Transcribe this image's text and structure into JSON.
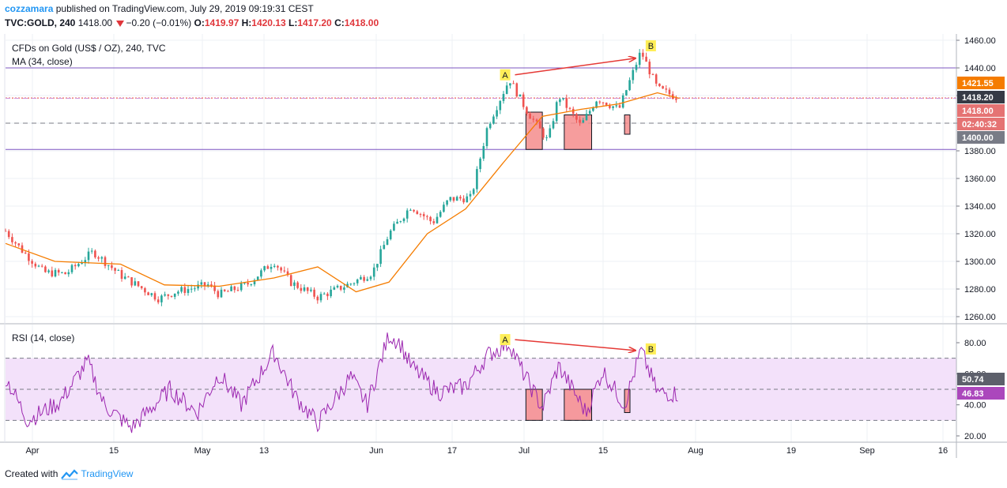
{
  "header": {
    "author": "cozzamara",
    "published": "published on TradingView.com, July 29, 2019 09:19:31 CEST",
    "symbol": "TVC:GOLD, 240",
    "last": "1418.00",
    "change": "−0.20 (−0.01%)",
    "o_label": "O:",
    "o": "1419.97",
    "h_label": "H:",
    "h": "1420.13",
    "l_label": "L:",
    "l": "1417.20",
    "c_label": "C:",
    "c": "1418.00"
  },
  "footer": {
    "created_with": "Created with",
    "brand": "TradingView"
  },
  "colors": {
    "candle_up": "#26a69a",
    "candle_down": "#ef5350",
    "ma": "#f57c00",
    "rsi": "#9c27b0",
    "rsi_band": "#f3e1fa",
    "resistance": "#7e57c2",
    "arrow": "#e53935",
    "box": "#f48c8c",
    "marker": "#ffee58",
    "badge_ma": "#f57c00",
    "badge_price": "#e57373",
    "badge_dark": "#363a45",
    "badge_gray": "#787b86",
    "badge_rsi_dark": "#5d606b",
    "badge_rsi": "#ab47bc"
  },
  "chart_data": [
    {
      "type": "candlestick",
      "title": "CFDs on Gold (US$ / OZ), 240, TVC",
      "indicator": "MA (34, close)",
      "y_ticks": [
        "1460.00",
        "1440.00",
        "1420.00",
        "1400.00",
        "1380.00",
        "1360.00",
        "1340.00",
        "1320.00",
        "1300.00",
        "1280.00",
        "1260.00"
      ],
      "x_ticks": [
        "Apr",
        "15",
        "May",
        "13",
        "Jun",
        "17",
        "Jul",
        "15",
        "Aug",
        "19",
        "Sep",
        "16"
      ],
      "ylim": [
        1254,
        1464
      ],
      "price_path": [
        {
          "x": "2019-03-25",
          "y": 1322
        },
        {
          "x": "2019-03-28",
          "y": 1308
        },
        {
          "x": "2019-04-01",
          "y": 1292
        },
        {
          "x": "2019-04-05",
          "y": 1291
        },
        {
          "x": "2019-04-10",
          "y": 1307
        },
        {
          "x": "2019-04-15",
          "y": 1290
        },
        {
          "x": "2019-04-22",
          "y": 1273
        },
        {
          "x": "2019-04-25",
          "y": 1278
        },
        {
          "x": "2019-05-01",
          "y": 1283
        },
        {
          "x": "2019-05-03",
          "y": 1276
        },
        {
          "x": "2019-05-08",
          "y": 1283
        },
        {
          "x": "2019-05-13",
          "y": 1300
        },
        {
          "x": "2019-05-16",
          "y": 1285
        },
        {
          "x": "2019-05-21",
          "y": 1274
        },
        {
          "x": "2019-05-27",
          "y": 1284
        },
        {
          "x": "2019-05-31",
          "y": 1292
        },
        {
          "x": "2019-06-03",
          "y": 1320
        },
        {
          "x": "2019-06-07",
          "y": 1340
        },
        {
          "x": "2019-06-11",
          "y": 1328
        },
        {
          "x": "2019-06-14",
          "y": 1345
        },
        {
          "x": "2019-06-18",
          "y": 1346
        },
        {
          "x": "2019-06-21",
          "y": 1398
        },
        {
          "x": "2019-06-25",
          "y": 1432
        },
        {
          "x": "2019-06-28",
          "y": 1410
        },
        {
          "x": "2019-07-02",
          "y": 1387
        },
        {
          "x": "2019-07-04",
          "y": 1420
        },
        {
          "x": "2019-07-08",
          "y": 1398
        },
        {
          "x": "2019-07-11",
          "y": 1418
        },
        {
          "x": "2019-07-15",
          "y": 1410
        },
        {
          "x": "2019-07-19",
          "y": 1452
        },
        {
          "x": "2019-07-22",
          "y": 1425
        },
        {
          "x": "2019-07-26",
          "y": 1418
        }
      ],
      "ma_path": [
        {
          "x": "2019-03-25",
          "y": 1313
        },
        {
          "x": "2019-04-03",
          "y": 1300
        },
        {
          "x": "2019-04-15",
          "y": 1298
        },
        {
          "x": "2019-04-23",
          "y": 1283
        },
        {
          "x": "2019-05-03",
          "y": 1282
        },
        {
          "x": "2019-05-13",
          "y": 1288
        },
        {
          "x": "2019-05-21",
          "y": 1296
        },
        {
          "x": "2019-05-28",
          "y": 1278
        },
        {
          "x": "2019-06-03",
          "y": 1285
        },
        {
          "x": "2019-06-10",
          "y": 1320
        },
        {
          "x": "2019-06-17",
          "y": 1338
        },
        {
          "x": "2019-06-24",
          "y": 1372
        },
        {
          "x": "2019-07-01",
          "y": 1405
        },
        {
          "x": "2019-07-08",
          "y": 1410
        },
        {
          "x": "2019-07-15",
          "y": 1414
        },
        {
          "x": "2019-07-22",
          "y": 1422
        },
        {
          "x": "2019-07-26",
          "y": 1418
        }
      ],
      "horizontal_lines": [
        {
          "y": 1440,
          "style": "solid",
          "color": "#7e57c2"
        },
        {
          "y": 1381,
          "style": "solid",
          "color": "#7e57c2"
        },
        {
          "y": 1418.2,
          "style": "dotted",
          "color": "#e53935"
        },
        {
          "y": 1418,
          "style": "dashed",
          "color": "#ce93d8"
        },
        {
          "y": 1400,
          "style": "dashed",
          "color": "#787b86"
        }
      ],
      "price_labels": [
        {
          "value": "1421.55",
          "color": "badge_ma"
        },
        {
          "value": "1418.20",
          "color": "badge_dark"
        },
        {
          "value": "1418.00",
          "color": "badge_price"
        },
        {
          "value": "02:40:32",
          "color": "badge_price"
        },
        {
          "value": "1400.00",
          "color": "badge_gray"
        }
      ],
      "annotations": [
        {
          "label": "A",
          "x": "2019-06-25",
          "y": 1435
        },
        {
          "label": "B",
          "x": "2019-07-19",
          "y": 1456
        }
      ],
      "divergence_arrow": {
        "from": {
          "x": "2019-06-26",
          "y": 1435
        },
        "to": {
          "x": "2019-07-18",
          "y": 1447
        }
      },
      "boxes": [
        {
          "x0": "2019-06-28",
          "x1": "2019-07-01",
          "y0": 1381,
          "y1": 1408
        },
        {
          "x0": "2019-07-05",
          "x1": "2019-07-10",
          "y0": 1381,
          "y1": 1406
        },
        {
          "x0": "2019-07-16",
          "x1": "2019-07-17",
          "y0": 1392,
          "y1": 1406
        }
      ]
    },
    {
      "type": "line",
      "title": "RSI (14, close)",
      "y_ticks": [
        "80.00",
        "60.00",
        "40.00",
        "20.00"
      ],
      "ylim": [
        19,
        89
      ],
      "band": [
        30,
        70
      ],
      "midline": 50,
      "rsi_path": [
        {
          "x": "2019-03-25",
          "y": 58
        },
        {
          "x": "2019-03-29",
          "y": 30
        },
        {
          "x": "2019-04-04",
          "y": 42
        },
        {
          "x": "2019-04-09",
          "y": 68
        },
        {
          "x": "2019-04-12",
          "y": 40
        },
        {
          "x": "2019-04-17",
          "y": 25
        },
        {
          "x": "2019-04-24",
          "y": 50
        },
        {
          "x": "2019-04-29",
          "y": 35
        },
        {
          "x": "2019-05-03",
          "y": 60
        },
        {
          "x": "2019-05-07",
          "y": 40
        },
        {
          "x": "2019-05-13",
          "y": 74
        },
        {
          "x": "2019-05-17",
          "y": 45
        },
        {
          "x": "2019-05-21",
          "y": 28
        },
        {
          "x": "2019-05-27",
          "y": 58
        },
        {
          "x": "2019-05-30",
          "y": 40
        },
        {
          "x": "2019-06-03",
          "y": 85
        },
        {
          "x": "2019-06-05",
          "y": 80
        },
        {
          "x": "2019-06-07",
          "y": 65
        },
        {
          "x": "2019-06-12",
          "y": 48
        },
        {
          "x": "2019-06-17",
          "y": 52
        },
        {
          "x": "2019-06-21",
          "y": 72
        },
        {
          "x": "2019-06-25",
          "y": 80
        },
        {
          "x": "2019-06-27",
          "y": 64
        },
        {
          "x": "2019-07-01",
          "y": 38
        },
        {
          "x": "2019-07-04",
          "y": 65
        },
        {
          "x": "2019-07-09",
          "y": 35
        },
        {
          "x": "2019-07-12",
          "y": 62
        },
        {
          "x": "2019-07-16",
          "y": 40
        },
        {
          "x": "2019-07-19",
          "y": 75
        },
        {
          "x": "2019-07-22",
          "y": 48
        },
        {
          "x": "2019-07-26",
          "y": 47
        }
      ],
      "value_labels": [
        {
          "value": "50.74",
          "color": "badge_rsi_dark"
        },
        {
          "value": "46.83",
          "color": "badge_rsi"
        }
      ],
      "annotations": [
        {
          "label": "A",
          "x": "2019-06-25",
          "y": 82
        },
        {
          "label": "B",
          "x": "2019-07-19",
          "y": 76
        }
      ],
      "divergence_arrow": {
        "from": {
          "x": "2019-06-26",
          "y": 82
        },
        "to": {
          "x": "2019-07-18",
          "y": 75
        }
      },
      "boxes": [
        {
          "x0": "2019-06-28",
          "x1": "2019-07-01",
          "y0": 30,
          "y1": 50
        },
        {
          "x0": "2019-07-05",
          "x1": "2019-07-10",
          "y0": 30,
          "y1": 50
        },
        {
          "x0": "2019-07-16",
          "x1": "2019-07-17",
          "y0": 35,
          "y1": 50
        }
      ]
    }
  ]
}
